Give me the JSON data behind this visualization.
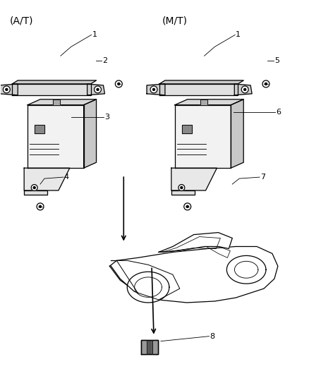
{
  "background_color": "#ffffff",
  "line_color": "#000000",
  "fig_width": 4.38,
  "fig_height": 5.33,
  "dpi": 100,
  "labels": {
    "AT": "(A/T)",
    "MT": "(M/T)"
  }
}
